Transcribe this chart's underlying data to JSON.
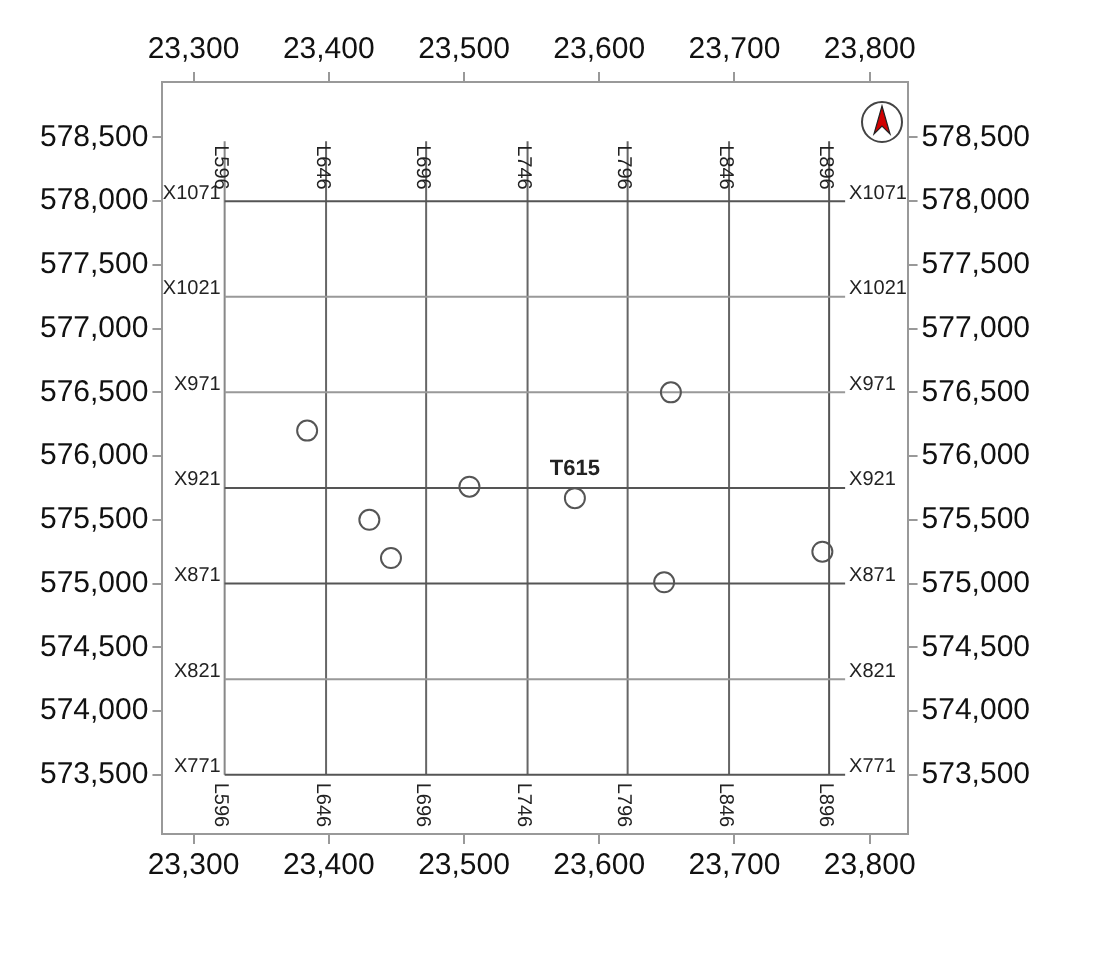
{
  "chart_data": {
    "type": "scatter",
    "x": [
      23384,
      23430,
      23446,
      23504,
      23582,
      23653,
      23648,
      23765
    ],
    "series": [
      {
        "color": "#555555",
        "values": [
          576200,
          575500,
          575200,
          575760,
          575670,
          576500,
          575010,
          575250
        ]
      }
    ],
    "marker": "circle",
    "legend": false,
    "grid": false,
    "xlim": [
      23277,
      23828
    ],
    "ylim": [
      573035,
      578935
    ],
    "x2lim": [
      23277,
      23828
    ],
    "y2lim": [
      573035,
      578935
    ],
    "xticks": [
      {
        "value": 23300,
        "label": "23,300"
      },
      {
        "value": 23400,
        "label": "23,400"
      },
      {
        "value": 23500,
        "label": "23,500"
      },
      {
        "value": 23600,
        "label": "23,600"
      },
      {
        "value": 23700,
        "label": "23,700"
      },
      {
        "value": 23800,
        "label": "23,800"
      }
    ],
    "x2ticks": [
      {
        "value": 23300,
        "label": "23,300"
      },
      {
        "value": 23400,
        "label": "23,400"
      },
      {
        "value": 23500,
        "label": "23,500"
      },
      {
        "value": 23600,
        "label": "23,600"
      },
      {
        "value": 23700,
        "label": "23,700"
      },
      {
        "value": 23800,
        "label": "23,800"
      }
    ],
    "yticks": [
      {
        "value": 573500,
        "label": "573,500"
      },
      {
        "value": 574000,
        "label": "574,000"
      },
      {
        "value": 574500,
        "label": "574,500"
      },
      {
        "value": 575000,
        "label": "575,000"
      },
      {
        "value": 575500,
        "label": "575,500"
      },
      {
        "value": 576000,
        "label": "576,000"
      },
      {
        "value": 576500,
        "label": "576,500"
      },
      {
        "value": 577000,
        "label": "577,000"
      },
      {
        "value": 577500,
        "label": "577,500"
      },
      {
        "value": 578000,
        "label": "578,000"
      },
      {
        "value": 578500,
        "label": "578,500"
      }
    ],
    "y2ticks": [
      {
        "value": 573500,
        "label": "573,500"
      },
      {
        "value": 574000,
        "label": "574,000"
      },
      {
        "value": 574500,
        "label": "574,500"
      },
      {
        "value": 575000,
        "label": "575,000"
      },
      {
        "value": 575500,
        "label": "575,500"
      },
      {
        "value": 576000,
        "label": "576,000"
      },
      {
        "value": 576500,
        "label": "576,500"
      },
      {
        "value": 577000,
        "label": "577,000"
      },
      {
        "value": 577500,
        "label": "577,500"
      },
      {
        "value": 578000,
        "label": "578,000"
      },
      {
        "value": 578500,
        "label": "578,500"
      }
    ],
    "ref_lines": [
      {
        "axis": "x",
        "value": 23323,
        "label": "L596",
        "color": "#888888"
      },
      {
        "axis": "x",
        "value": 23398,
        "label": "L646",
        "color": "#666666"
      },
      {
        "axis": "x",
        "value": 23472,
        "label": "L696",
        "color": "#666666"
      },
      {
        "axis": "x",
        "value": 23547,
        "label": "L746",
        "color": "#666666"
      },
      {
        "axis": "x",
        "value": 23621,
        "label": "L796",
        "color": "#666666"
      },
      {
        "axis": "x",
        "value": 23696,
        "label": "L846",
        "color": "#666666"
      },
      {
        "axis": "x",
        "value": 23770,
        "label": "L896",
        "color": "#555555"
      },
      {
        "axis": "y",
        "value": 578000,
        "label": "X1071",
        "color": "#555555"
      },
      {
        "axis": "y",
        "value": 577250,
        "label": "X1021",
        "color": "#999999"
      },
      {
        "axis": "y",
        "value": 576500,
        "label": "X971",
        "color": "#999999"
      },
      {
        "axis": "y",
        "value": 575750,
        "label": "X921",
        "color": "#555555"
      },
      {
        "axis": "y",
        "value": 575000,
        "label": "X871",
        "color": "#555555"
      },
      {
        "axis": "y",
        "value": 574250,
        "label": "X821",
        "color": "#999999"
      },
      {
        "axis": "y",
        "value": 573500,
        "label": "X771",
        "color": "#555555"
      }
    ],
    "annotations": [
      {
        "text": "T615",
        "x": 23582,
        "y": 575670
      }
    ]
  }
}
